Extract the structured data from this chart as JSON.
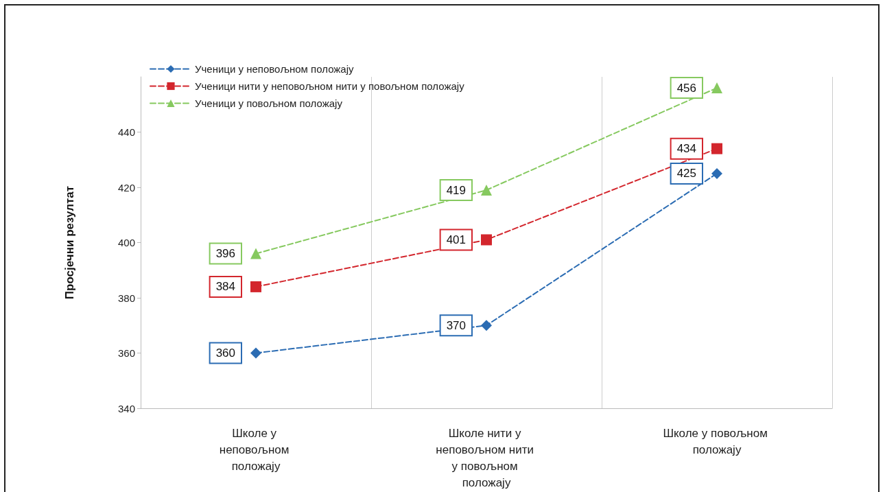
{
  "chart_data": {
    "type": "line",
    "ylabel": "Просјечни резултат",
    "categories": [
      "Школе у неповољном положају",
      "Школе нити у неповољном нити у повољном положају",
      "Школе у повољном положају"
    ],
    "series": [
      {
        "name": "Ученици у неповољном положају",
        "color": "#2b6cb3",
        "marker": "diamond",
        "values": [
          360,
          370,
          425
        ]
      },
      {
        "name": "Ученици нити у неповољном нити у повољном положају",
        "color": "#d3262d",
        "marker": "square",
        "values": [
          384,
          401,
          434
        ]
      },
      {
        "name": "Ученици у повољном положају",
        "color": "#86c95f",
        "marker": "triangle",
        "values": [
          396,
          419,
          456
        ]
      }
    ],
    "ylim": [
      340,
      460
    ],
    "yticks": [
      340,
      360,
      380,
      400,
      420,
      440
    ],
    "grid": "x",
    "legend": "top left",
    "line_style": "dashed",
    "data_labels": true
  }
}
